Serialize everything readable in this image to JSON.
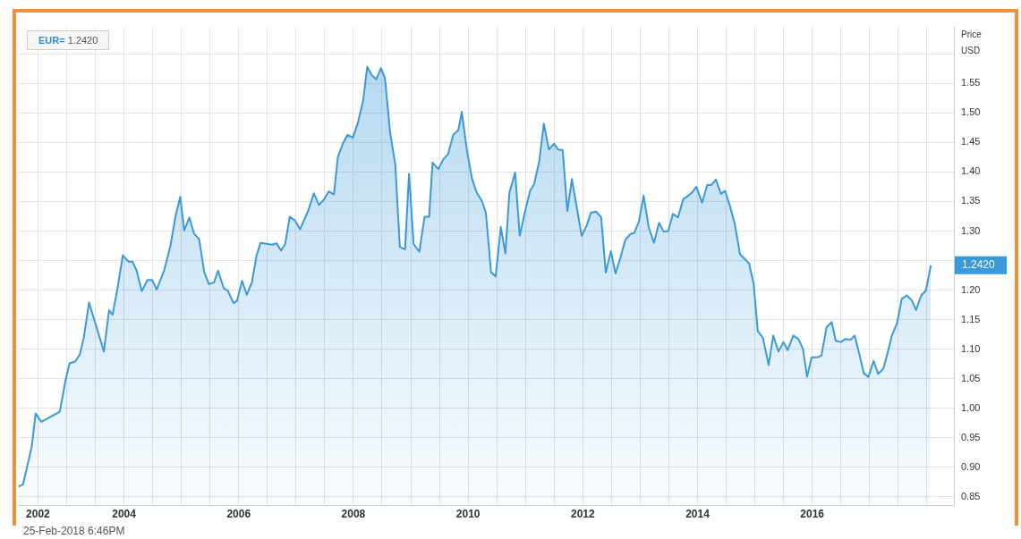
{
  "chart_data": {
    "type": "area",
    "ylabel": "Price USD",
    "annotations": [
      "EUR= 1.2420",
      "25-Feb-2018 6:46PM",
      "1.2420"
    ],
    "x": [
      2002.16,
      2002.24,
      2002.39,
      2002.46,
      2002.56,
      2002.88,
      2002.98,
      2003.05,
      2003.15,
      2003.23,
      2003.3,
      2003.39,
      2003.65,
      2003.74,
      2003.8,
      2003.88,
      2003.98,
      2004.08,
      2004.15,
      2004.22,
      2004.31,
      2004.41,
      2004.49,
      2004.57,
      2004.7,
      2004.81,
      2004.9,
      2004.98,
      2005.05,
      2005.14,
      2005.22,
      2005.31,
      2005.4,
      2005.48,
      2005.57,
      2005.64,
      2005.74,
      2005.81,
      2005.91,
      2005.97,
      2006.06,
      2006.14,
      2006.23,
      2006.31,
      2006.38,
      2006.51,
      2006.58,
      2006.66,
      2006.74,
      2006.81,
      2006.89,
      2006.98,
      2007.07,
      2007.21,
      2007.31,
      2007.4,
      2007.49,
      2007.57,
      2007.66,
      2007.73,
      2007.82,
      2007.9,
      2007.99,
      2008.08,
      2008.17,
      2008.24,
      2008.32,
      2008.4,
      2008.48,
      2008.55,
      2008.64,
      2008.73,
      2008.81,
      2008.9,
      2008.97,
      2009.05,
      2009.15,
      2009.24,
      2009.32,
      2009.38,
      2009.48,
      2009.57,
      2009.65,
      2009.74,
      2009.83,
      2009.89,
      2009.98,
      2010.07,
      2010.15,
      2010.24,
      2010.31,
      2010.4,
      2010.48,
      2010.57,
      2010.65,
      2010.72,
      2010.82,
      2010.9,
      2010.99,
      2011.08,
      2011.15,
      2011.24,
      2011.32,
      2011.41,
      2011.5,
      2011.57,
      2011.65,
      2011.73,
      2011.81,
      2011.9,
      2011.98,
      2012.07,
      2012.14,
      2012.23,
      2012.32,
      2012.4,
      2012.49,
      2012.57,
      2012.66,
      2012.74,
      2012.83,
      2012.9,
      2012.98,
      2013.06,
      2013.15,
      2013.24,
      2013.33,
      2013.41,
      2013.49,
      2013.57,
      2013.66,
      2013.75,
      2013.84,
      2013.91,
      2013.98,
      2014.08,
      2014.17,
      2014.24,
      2014.32,
      2014.41,
      2014.48,
      2014.57,
      2014.65,
      2014.74,
      2014.82,
      2014.9,
      2014.98,
      2015.05,
      2015.14,
      2015.24,
      2015.32,
      2015.41,
      2015.5,
      2015.57,
      2015.67,
      2015.76,
      2015.84,
      2015.91,
      2015.99,
      2016.08,
      2016.16,
      2016.25,
      2016.34,
      2016.41,
      2016.5,
      2016.57,
      2016.67,
      2016.74,
      2016.82,
      2016.9,
      2016.98,
      2017.07,
      2017.15,
      2017.24,
      2017.31,
      2017.39,
      2017.48,
      2017.56,
      2017.65,
      2017.74,
      2017.81,
      2017.9,
      2017.98,
      2018.07
    ],
    "series": [
      {
        "color": "#3a9ad9",
        "values": [
          0.867,
          0.871,
          0.934,
          0.991,
          0.977,
          0.994,
          1.047,
          1.076,
          1.079,
          1.091,
          1.12,
          1.179,
          1.096,
          1.166,
          1.158,
          1.199,
          1.259,
          1.248,
          1.248,
          1.233,
          1.198,
          1.217,
          1.217,
          1.201,
          1.233,
          1.275,
          1.326,
          1.358,
          1.301,
          1.323,
          1.296,
          1.286,
          1.23,
          1.21,
          1.213,
          1.233,
          1.203,
          1.199,
          1.178,
          1.182,
          1.216,
          1.192,
          1.213,
          1.258,
          1.28,
          1.278,
          1.277,
          1.279,
          1.267,
          1.278,
          1.324,
          1.318,
          1.303,
          1.334,
          1.364,
          1.344,
          1.354,
          1.367,
          1.362,
          1.426,
          1.449,
          1.463,
          1.458,
          1.484,
          1.521,
          1.578,
          1.564,
          1.557,
          1.576,
          1.559,
          1.467,
          1.413,
          1.273,
          1.269,
          1.397,
          1.278,
          1.265,
          1.324,
          1.324,
          1.416,
          1.405,
          1.422,
          1.43,
          1.463,
          1.471,
          1.502,
          1.436,
          1.388,
          1.365,
          1.351,
          1.331,
          1.23,
          1.223,
          1.307,
          1.262,
          1.365,
          1.399,
          1.292,
          1.332,
          1.368,
          1.379,
          1.418,
          1.482,
          1.438,
          1.448,
          1.438,
          1.437,
          1.334,
          1.388,
          1.337,
          1.292,
          1.31,
          1.331,
          1.333,
          1.323,
          1.23,
          1.266,
          1.228,
          1.256,
          1.285,
          1.295,
          1.297,
          1.317,
          1.36,
          1.306,
          1.28,
          1.314,
          1.299,
          1.3,
          1.329,
          1.323,
          1.354,
          1.36,
          1.366,
          1.375,
          1.348,
          1.378,
          1.378,
          1.387,
          1.363,
          1.368,
          1.341,
          1.312,
          1.261,
          1.253,
          1.245,
          1.21,
          1.131,
          1.119,
          1.073,
          1.123,
          1.096,
          1.112,
          1.098,
          1.123,
          1.117,
          1.1,
          1.053,
          1.086,
          1.086,
          1.089,
          1.137,
          1.146,
          1.114,
          1.112,
          1.117,
          1.116,
          1.123,
          1.092,
          1.059,
          1.053,
          1.08,
          1.058,
          1.067,
          1.092,
          1.123,
          1.144,
          1.185,
          1.191,
          1.182,
          1.166,
          1.191,
          1.199,
          1.242
        ]
      }
    ],
    "xlim": [
      2002.15,
      2018.47
    ],
    "xticks": [
      {
        "value": 2002.5,
        "label": "2002"
      },
      {
        "value": 2003,
        "label": null
      },
      {
        "value": 2003.5,
        "label": null
      },
      {
        "value": 2004,
        "label": "2004"
      },
      {
        "value": 2004.5,
        "label": null
      },
      {
        "value": 2005,
        "label": null
      },
      {
        "value": 2005.5,
        "label": null
      },
      {
        "value": 2006,
        "label": "2006"
      },
      {
        "value": 2006.5,
        "label": null
      },
      {
        "value": 2007,
        "label": null
      },
      {
        "value": 2007.5,
        "label": null
      },
      {
        "value": 2008,
        "label": "2008"
      },
      {
        "value": 2008.5,
        "label": null
      },
      {
        "value": 2009,
        "label": null
      },
      {
        "value": 2009.5,
        "label": null
      },
      {
        "value": 2010,
        "label": "2010"
      },
      {
        "value": 2010.5,
        "label": null
      },
      {
        "value": 2011,
        "label": null
      },
      {
        "value": 2011.5,
        "label": null
      },
      {
        "value": 2012,
        "label": "2012"
      },
      {
        "value": 2012.5,
        "label": null
      },
      {
        "value": 2013,
        "label": null
      },
      {
        "value": 2013.5,
        "label": null
      },
      {
        "value": 2014,
        "label": "2014"
      },
      {
        "value": 2014.5,
        "label": null
      },
      {
        "value": 2015,
        "label": null
      },
      {
        "value": 2015.5,
        "label": null
      },
      {
        "value": 2016,
        "label": "2016"
      },
      {
        "value": 2016.5,
        "label": null
      },
      {
        "value": 2017,
        "label": null
      },
      {
        "value": 2017.5,
        "label": null
      },
      {
        "value": 2018,
        "label": null
      }
    ],
    "ylim": [
      0.835,
      1.645
    ],
    "yticks": [
      {
        "value": 0.85,
        "label": "0.85"
      },
      {
        "value": 0.9,
        "label": "0.90"
      },
      {
        "value": 0.95,
        "label": "0.95"
      },
      {
        "value": 1.0,
        "label": "1.00"
      },
      {
        "value": 1.05,
        "label": "1.05"
      },
      {
        "value": 1.1,
        "label": "1.10"
      },
      {
        "value": 1.15,
        "label": "1.15"
      },
      {
        "value": 1.2,
        "label": "1.20"
      },
      {
        "value": 1.25,
        "label": null
      },
      {
        "value": 1.3,
        "label": "1.30"
      },
      {
        "value": 1.35,
        "label": "1.35"
      },
      {
        "value": 1.4,
        "label": "1.40"
      },
      {
        "value": 1.45,
        "label": "1.45"
      },
      {
        "value": 1.5,
        "label": "1.50"
      },
      {
        "value": 1.55,
        "label": "1.55"
      },
      {
        "value": 1.6,
        "label": null
      }
    ],
    "grid": true,
    "legend": false,
    "marker": "none",
    "line_style": "solid"
  }
}
